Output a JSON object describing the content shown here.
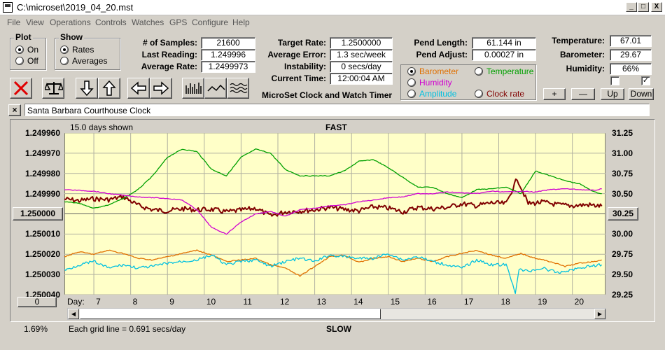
{
  "window": {
    "title": "C:\\microset\\2019_04_20.mst",
    "min": "_",
    "max": "□",
    "close": "X"
  },
  "menu": [
    "File",
    "View",
    "Operations",
    "Controls",
    "Watches",
    "GPS",
    "Configure",
    "Help"
  ],
  "plot": {
    "title": "Plot",
    "options": [
      "On",
      "Off"
    ],
    "selected": 0
  },
  "show": {
    "title": "Show",
    "options": [
      "Rates",
      "Averages"
    ],
    "selected": 0
  },
  "stats": [
    {
      "label": "# of Samples:",
      "value": "21600"
    },
    {
      "label": "Last Reading:",
      "value": "1.249996"
    },
    {
      "label": "Average Rate:",
      "value": "1.2499973"
    }
  ],
  "rates": [
    {
      "label": "Target Rate:",
      "value": "1.2500000"
    },
    {
      "label": "Average Error:",
      "value": "1.3 sec/week"
    },
    {
      "label": "Instability:",
      "value": "0 secs/day"
    },
    {
      "label": "Current Time:",
      "value": "12:00:04 AM"
    }
  ],
  "app_caption": "MicroSet Clock and Watch Timer",
  "pend": [
    {
      "label": "Pend Length:",
      "value": "61.144 in"
    },
    {
      "label": "Pend Adjust:",
      "value": "0.00027 in"
    }
  ],
  "env": [
    {
      "label": "Temperature:",
      "value": "67.01"
    },
    {
      "label": "Barometer:",
      "value": "29.67"
    },
    {
      "label": "Humidity:",
      "value": "66%"
    }
  ],
  "sensor_options": [
    {
      "label": "Barometer",
      "color": "#e07000",
      "selected": true
    },
    {
      "label": "Temperature",
      "color": "#00a000",
      "selected": false
    },
    {
      "label": "Humidity",
      "color": "#d000d0",
      "selected": false
    },
    {
      "label": "Clock rate",
      "color": "#800000",
      "selected": false
    },
    {
      "label": "Amplitude",
      "color": "#00c0e0",
      "selected": false
    }
  ],
  "adjust_buttons": [
    "+",
    "—",
    "Up",
    "Down"
  ],
  "checkbox2_mark": "✓",
  "clock_close": "×",
  "clock_name": "Santa Barbara Courthouse Clock",
  "chart_header": {
    "days_shown": "15.0 days shown",
    "top_label": "FAST",
    "bottom_label": "SLOW"
  },
  "grid_note": "Each grid line = 0.691 secs/day",
  "left_bottom": "1.69%",
  "left_button": "0",
  "right_button": "30.25",
  "center_button": "1.250000",
  "chart_data": {
    "type": "line",
    "xlabel": "Day:",
    "x_ticks": [
      "7",
      "8",
      "9",
      "10",
      "11",
      "12",
      "13",
      "14",
      "15",
      "16",
      "17",
      "18",
      "19",
      "20"
    ],
    "y_left_ticks": [
      "1.249960",
      "1.249970",
      "1.249980",
      "1.249990",
      "1.250000",
      "1.250010",
      "1.250020",
      "1.250030",
      "1.250040"
    ],
    "y_right_ticks": [
      "31.25",
      "31.00",
      "30.75",
      "30.50",
      "30.25",
      "30.00",
      "29.75",
      "29.50",
      "29.25"
    ],
    "xlim": [
      6.2,
      20.9
    ],
    "y_right_range": [
      29.25,
      31.25
    ],
    "series": [
      {
        "name": "Clock rate",
        "color": "#800000",
        "axis": "left_rate",
        "x": [
          6.2,
          6.6,
          7.0,
          7.4,
          7.8,
          8.2,
          8.6,
          9.0,
          9.4,
          9.8,
          10.2,
          10.6,
          11.0,
          11.4,
          11.8,
          12.2,
          12.6,
          13.0,
          13.4,
          13.8,
          14.2,
          14.6,
          15.0,
          15.4,
          15.8,
          16.2,
          16.6,
          17.0,
          17.4,
          17.8,
          18.2,
          18.5,
          18.8,
          19.2,
          19.6,
          20.0,
          20.4,
          20.8
        ],
        "y": [
          1.2499927,
          1.2499935,
          1.2499925,
          1.249993,
          1.2499915,
          1.2499958,
          1.249998,
          1.2499985,
          1.2499975,
          1.249998,
          1.2499978,
          1.249999,
          1.2499982,
          1.2499972,
          1.250001,
          1.249999,
          1.2499985,
          1.249998,
          1.2499968,
          1.2499978,
          1.2499985,
          1.2499965,
          1.2499972,
          1.249999,
          1.2499968,
          1.2499975,
          1.2499968,
          1.249995,
          1.249996,
          1.2499945,
          1.249995,
          1.2499825,
          1.249995,
          1.2499942,
          1.2499955,
          1.249996,
          1.2499955,
          1.2499962
        ]
      },
      {
        "name": "Temperature",
        "color": "#00a000",
        "axis": "right",
        "x": [
          6.2,
          6.6,
          7.0,
          7.4,
          7.8,
          8.2,
          8.6,
          9.0,
          9.4,
          9.8,
          10.2,
          10.6,
          11.0,
          11.4,
          11.8,
          12.2,
          12.6,
          13.0,
          13.4,
          13.8,
          14.2,
          14.6,
          15.0,
          15.4,
          15.8,
          16.2,
          16.6,
          17.0,
          17.4,
          17.8,
          18.2,
          18.6,
          19.0,
          19.4,
          19.8,
          20.2,
          20.6,
          20.8
        ],
        "y": [
          30.4,
          30.38,
          30.32,
          30.36,
          30.44,
          30.55,
          30.72,
          30.95,
          31.05,
          31.02,
          30.8,
          30.72,
          30.95,
          31.05,
          31.0,
          30.8,
          30.72,
          30.72,
          30.72,
          30.78,
          30.9,
          30.92,
          30.82,
          30.7,
          30.58,
          30.58,
          30.5,
          30.45,
          30.55,
          30.56,
          30.58,
          30.5,
          30.78,
          30.72,
          30.66,
          30.62,
          30.52,
          30.5
        ]
      },
      {
        "name": "Humidity",
        "color": "#d000d0",
        "axis": "right",
        "x": [
          6.2,
          6.6,
          7.0,
          7.4,
          7.8,
          8.2,
          8.6,
          9.0,
          9.4,
          9.8,
          10.2,
          10.6,
          11.0,
          11.4,
          11.8,
          12.2,
          12.6,
          13.0,
          13.4,
          13.8,
          14.2,
          14.6,
          15.0,
          15.4,
          15.8,
          16.2,
          16.6,
          17.0,
          17.4,
          17.8,
          18.2,
          18.6,
          19.0,
          19.4,
          19.8,
          20.2,
          20.6,
          20.8
        ],
        "y": [
          30.55,
          30.54,
          30.53,
          30.5,
          30.48,
          30.46,
          30.45,
          30.44,
          30.42,
          30.3,
          30.08,
          30.0,
          30.15,
          30.25,
          30.28,
          30.22,
          30.3,
          30.32,
          30.35,
          30.36,
          30.4,
          30.42,
          30.45,
          30.46,
          30.5,
          30.5,
          30.52,
          30.51,
          30.5,
          30.53,
          30.52,
          30.53,
          30.52,
          30.55,
          30.56,
          30.55,
          30.54,
          30.56
        ]
      },
      {
        "name": "Barometer",
        "color": "#e07000",
        "axis": "right",
        "x": [
          6.2,
          6.6,
          7.0,
          7.4,
          7.8,
          8.2,
          8.6,
          9.0,
          9.4,
          9.8,
          10.2,
          10.6,
          11.0,
          11.4,
          11.8,
          12.2,
          12.6,
          13.0,
          13.4,
          13.8,
          14.2,
          14.6,
          15.0,
          15.4,
          15.8,
          16.2,
          16.6,
          17.0,
          17.4,
          17.8,
          18.2,
          18.6,
          19.0,
          19.4,
          19.8,
          20.2,
          20.6,
          20.8
        ],
        "y": [
          29.72,
          29.78,
          29.75,
          29.8,
          29.76,
          29.7,
          29.68,
          29.72,
          29.76,
          29.8,
          29.74,
          29.66,
          29.68,
          29.7,
          29.62,
          29.58,
          29.48,
          29.6,
          29.72,
          29.74,
          29.65,
          29.7,
          29.72,
          29.66,
          29.7,
          29.66,
          29.72,
          29.76,
          29.8,
          29.74,
          29.7,
          29.76,
          29.7,
          29.66,
          29.6,
          29.64,
          29.66,
          29.68
        ]
      },
      {
        "name": "Amplitude",
        "color": "#00c0e0",
        "axis": "right",
        "x": [
          6.2,
          6.6,
          7.0,
          7.4,
          7.8,
          8.2,
          8.6,
          9.0,
          9.4,
          9.8,
          10.2,
          10.6,
          11.0,
          11.4,
          11.8,
          12.2,
          12.6,
          13.0,
          13.4,
          13.8,
          14.2,
          14.6,
          15.0,
          15.4,
          15.8,
          16.2,
          16.6,
          17.0,
          17.4,
          17.8,
          18.2,
          18.45,
          18.55,
          18.8,
          19.2,
          19.6,
          20.0,
          20.4,
          20.8
        ],
        "y": [
          29.55,
          29.62,
          29.66,
          29.58,
          29.62,
          29.58,
          29.6,
          29.64,
          29.66,
          29.68,
          29.74,
          29.62,
          29.66,
          29.68,
          29.6,
          29.66,
          29.7,
          29.66,
          29.74,
          29.72,
          29.7,
          29.7,
          29.76,
          29.68,
          29.72,
          29.66,
          29.62,
          29.58,
          29.68,
          29.62,
          29.62,
          29.28,
          29.56,
          29.54,
          29.58,
          29.52,
          29.56,
          29.6,
          29.62
        ]
      }
    ]
  }
}
